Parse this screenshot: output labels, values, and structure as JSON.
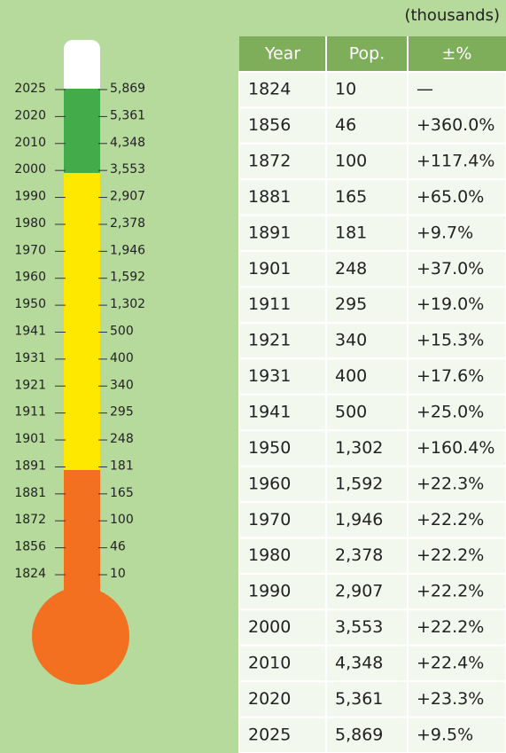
{
  "table": {
    "unit_note": "(thousands)",
    "header": [
      "Year",
      "Pop.",
      "±%"
    ],
    "rows": [
      [
        "1824",
        "10",
        "—"
      ],
      [
        "1856",
        "46",
        "+360.0%"
      ],
      [
        "1872",
        "100",
        "+117.4%"
      ],
      [
        "1881",
        "165",
        "+65.0%"
      ],
      [
        "1891",
        "181",
        "+9.7%"
      ],
      [
        "1901",
        "248",
        "+37.0%"
      ],
      [
        "1911",
        "295",
        "+19.0%"
      ],
      [
        "1921",
        "340",
        "+15.3%"
      ],
      [
        "1931",
        "400",
        "+17.6%"
      ],
      [
        "1941",
        "500",
        "+25.0%"
      ],
      [
        "1950",
        "1,302",
        "+160.4%"
      ],
      [
        "1960",
        "1,592",
        "+22.3%"
      ],
      [
        "1970",
        "1,946",
        "+22.2%"
      ],
      [
        "1980",
        "2,378",
        "+22.2%"
      ],
      [
        "1990",
        "2,907",
        "+22.2%"
      ],
      [
        "2000",
        "3,553",
        "+22.2%"
      ],
      [
        "2010",
        "4,348",
        "+22.4%"
      ],
      [
        "2020",
        "5,361",
        "+23.3%"
      ],
      [
        "2025",
        "5,869",
        "+9.5%"
      ]
    ]
  }
}
